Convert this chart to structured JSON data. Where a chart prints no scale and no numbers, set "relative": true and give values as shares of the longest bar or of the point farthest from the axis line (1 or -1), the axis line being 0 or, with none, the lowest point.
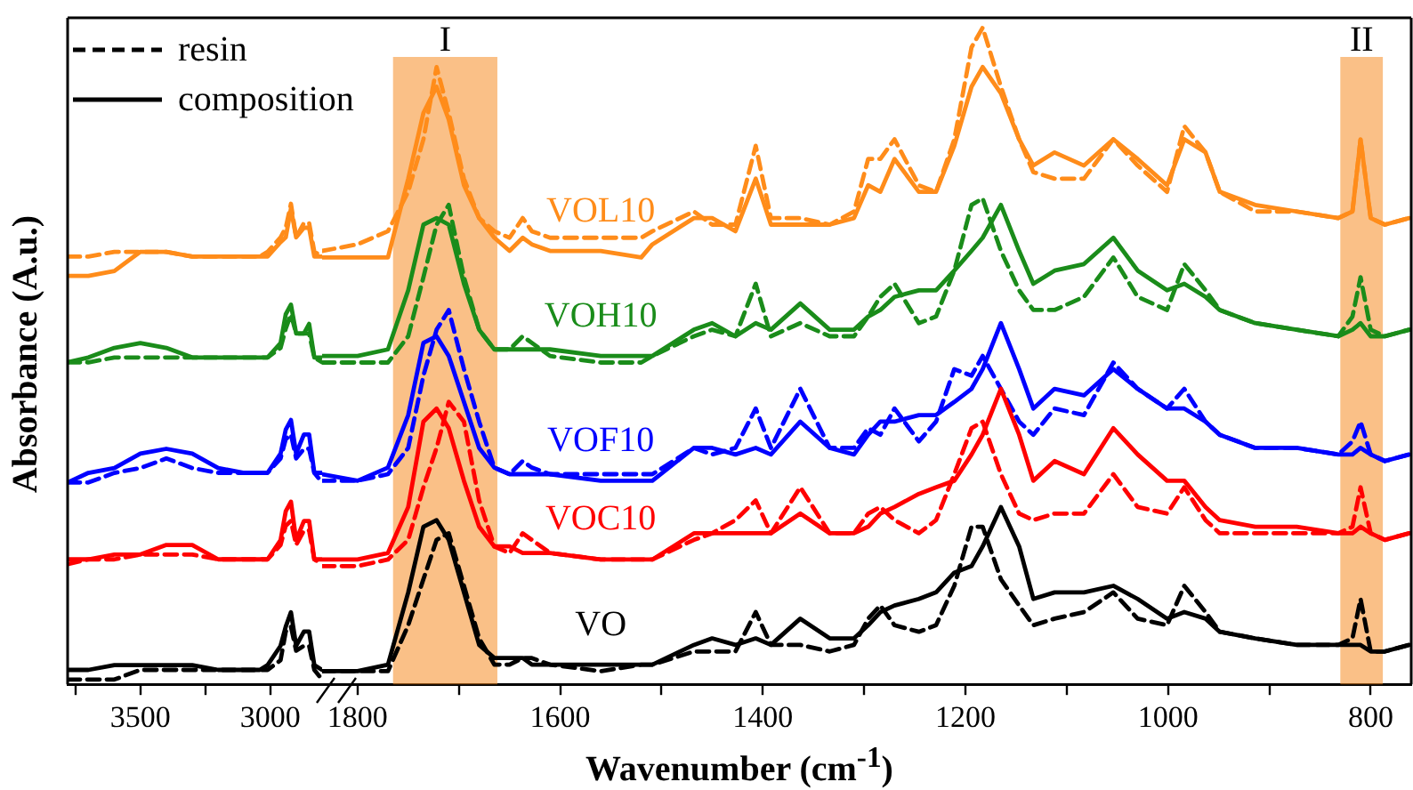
{
  "chart_data": [
    {
      "type": "line",
      "relative": true,
      "ylabel": "Absorbance (A.u.)",
      "annotations": [
        "resin",
        "composition"
      ],
      "tick_labels": "x",
      "xlim": [
        3780,
        2800
      ],
      "xticks": [
        {
          "value": 3750,
          "label": null
        },
        3500,
        {
          "value": 3250,
          "label": null
        },
        3000
      ],
      "x": [
        3780,
        3700,
        3600,
        3500,
        3400,
        3300,
        3200,
        3100,
        3040,
        3010,
        2960,
        2940,
        2920,
        2900,
        2870,
        2850,
        2830,
        2800
      ],
      "series": [
        {
          "color": "#000000",
          "line_style": "dashed",
          "values": [
            0.01,
            0.01,
            0.01,
            0.03,
            0.03,
            0.03,
            0.03,
            0.03,
            0.03,
            0.03,
            0.05,
            0.11,
            0.12,
            0.07,
            0.08,
            0.08,
            0.03,
            0.01
          ]
        },
        {
          "color": "#000000",
          "line_style": "solid",
          "values": [
            0.03,
            0.03,
            0.04,
            0.04,
            0.04,
            0.04,
            0.03,
            0.03,
            0.03,
            0.04,
            0.08,
            0.12,
            0.15,
            0.08,
            0.11,
            0.11,
            0.04,
            0.03
          ]
        },
        {
          "color": "#ff0000",
          "line_style": "dashed",
          "values": [
            0.25,
            0.26,
            0.26,
            0.27,
            0.27,
            0.27,
            0.26,
            0.26,
            0.26,
            0.26,
            0.29,
            0.33,
            0.34,
            0.29,
            0.32,
            0.32,
            0.26,
            0.25
          ]
        },
        {
          "color": "#ff0000",
          "line_style": "solid",
          "values": [
            0.26,
            0.26,
            0.27,
            0.27,
            0.29,
            0.29,
            0.26,
            0.26,
            0.26,
            0.26,
            0.3,
            0.36,
            0.38,
            0.3,
            0.34,
            0.34,
            0.26,
            0.26
          ]
        },
        {
          "color": "#0000ff",
          "line_style": "dashed",
          "values": [
            0.42,
            0.42,
            0.44,
            0.45,
            0.47,
            0.45,
            0.44,
            0.44,
            0.44,
            0.44,
            0.47,
            0.51,
            0.52,
            0.47,
            0.49,
            0.49,
            0.44,
            0.42
          ]
        },
        {
          "color": "#0000ff",
          "line_style": "solid",
          "values": [
            0.42,
            0.44,
            0.45,
            0.48,
            0.49,
            0.48,
            0.45,
            0.44,
            0.44,
            0.44,
            0.48,
            0.53,
            0.55,
            0.48,
            0.52,
            0.52,
            0.44,
            0.44
          ]
        },
        {
          "color": "#1a8c1a",
          "line_style": "dashed",
          "values": [
            0.67,
            0.67,
            0.68,
            0.68,
            0.68,
            0.68,
            0.68,
            0.68,
            0.68,
            0.68,
            0.7,
            0.74,
            0.77,
            0.73,
            0.73,
            0.73,
            0.68,
            0.67
          ]
        },
        {
          "color": "#1a8c1a",
          "line_style": "solid",
          "values": [
            0.67,
            0.68,
            0.7,
            0.71,
            0.7,
            0.68,
            0.68,
            0.68,
            0.68,
            0.68,
            0.71,
            0.77,
            0.79,
            0.73,
            0.73,
            0.75,
            0.68,
            0.68
          ]
        },
        {
          "color": "#ff8c1a",
          "line_style": "dashed",
          "values": [
            0.89,
            0.89,
            0.9,
            0.9,
            0.9,
            0.89,
            0.89,
            0.89,
            0.89,
            0.9,
            0.93,
            0.95,
            1.0,
            0.93,
            0.96,
            0.96,
            0.9,
            0.89
          ]
        },
        {
          "color": "#ff8c1a",
          "line_style": "solid",
          "values": [
            0.85,
            0.85,
            0.86,
            0.9,
            0.9,
            0.89,
            0.89,
            0.89,
            0.89,
            0.89,
            0.92,
            0.93,
            0.99,
            0.93,
            0.95,
            0.95,
            0.89,
            0.89
          ]
        }
      ]
    },
    {
      "type": "line",
      "relative": true,
      "xlabel": "Wavenumber (cm$^{-1}$)",
      "tick_labels": "x",
      "xlim": [
        1835,
        760
      ],
      "xticks": [
        1800,
        {
          "value": 1700,
          "label": null
        },
        1600,
        {
          "value": 1500,
          "label": null
        },
        1400,
        {
          "value": 1300,
          "label": null
        },
        1200,
        {
          "value": 1100,
          "label": null
        },
        1000,
        {
          "value": 900,
          "label": null
        },
        800
      ],
      "bands": [
        {
          "axis": "x",
          "from": 1765,
          "to": 1662,
          "label": "I",
          "color": "#f68c25"
        },
        {
          "axis": "x",
          "from": 830,
          "to": 788,
          "label": "II",
          "color": "#f68c25"
        }
      ],
      "x": [
        1835,
        1800,
        1770,
        1750,
        1735,
        1722,
        1710,
        1695,
        1680,
        1665,
        1650,
        1637,
        1628,
        1610,
        1560,
        1520,
        1509,
        1468,
        1450,
        1427,
        1407,
        1392,
        1363,
        1334,
        1310,
        1296,
        1284,
        1270,
        1246,
        1229,
        1211,
        1194,
        1183,
        1165,
        1147,
        1133,
        1112,
        1083,
        1054,
        1030,
        1001,
        984,
        963,
        949,
        914,
        873,
        832,
        818,
        810,
        800,
        786,
        762
      ],
      "series": [
        {
          "color": "#000000",
          "line_style": "dashed",
          "values": [
            0.02,
            0.02,
            0.02,
            0.09,
            0.16,
            0.22,
            0.23,
            0.15,
            0.07,
            0.03,
            0.03,
            0.04,
            0.04,
            0.03,
            0.02,
            0.03,
            0.03,
            0.05,
            0.05,
            0.05,
            0.11,
            0.06,
            0.06,
            0.05,
            0.06,
            0.1,
            0.12,
            0.09,
            0.08,
            0.09,
            0.15,
            0.24,
            0.24,
            0.16,
            0.12,
            0.09,
            0.1,
            0.11,
            0.14,
            0.1,
            0.09,
            0.15,
            0.11,
            0.08,
            0.07,
            0.06,
            0.06,
            0.07,
            0.13,
            0.05,
            0.05,
            0.06
          ]
        },
        {
          "name": "VO",
          "color": "#000000",
          "line_style": "solid",
          "values": [
            0.02,
            0.02,
            0.03,
            0.14,
            0.24,
            0.25,
            0.22,
            0.14,
            0.06,
            0.04,
            0.04,
            0.04,
            0.03,
            0.03,
            0.03,
            0.03,
            0.03,
            0.06,
            0.07,
            0.06,
            0.07,
            0.06,
            0.1,
            0.07,
            0.07,
            0.09,
            0.11,
            0.12,
            0.13,
            0.14,
            0.17,
            0.18,
            0.21,
            0.27,
            0.21,
            0.13,
            0.14,
            0.14,
            0.15,
            0.13,
            0.1,
            0.11,
            0.1,
            0.08,
            0.07,
            0.06,
            0.06,
            0.06,
            0.06,
            0.05,
            0.05,
            0.06
          ]
        },
        {
          "color": "#ff0000",
          "line_style": "dashed",
          "values": [
            0.18,
            0.18,
            0.19,
            0.22,
            0.3,
            0.36,
            0.43,
            0.4,
            0.28,
            0.21,
            0.2,
            0.23,
            0.22,
            0.2,
            0.19,
            0.19,
            0.19,
            0.22,
            0.23,
            0.25,
            0.28,
            0.23,
            0.3,
            0.23,
            0.23,
            0.26,
            0.27,
            0.25,
            0.23,
            0.25,
            0.32,
            0.39,
            0.4,
            0.32,
            0.26,
            0.25,
            0.26,
            0.26,
            0.32,
            0.27,
            0.26,
            0.3,
            0.25,
            0.23,
            0.23,
            0.23,
            0.23,
            0.24,
            0.3,
            0.23,
            0.22,
            0.23
          ]
        },
        {
          "name": "VOC10",
          "color": "#ff0000",
          "line_style": "solid",
          "values": [
            0.19,
            0.19,
            0.2,
            0.27,
            0.4,
            0.42,
            0.39,
            0.31,
            0.24,
            0.21,
            0.21,
            0.2,
            0.2,
            0.2,
            0.19,
            0.19,
            0.19,
            0.23,
            0.23,
            0.23,
            0.23,
            0.23,
            0.26,
            0.23,
            0.23,
            0.24,
            0.26,
            0.27,
            0.29,
            0.3,
            0.31,
            0.35,
            0.38,
            0.45,
            0.38,
            0.31,
            0.34,
            0.32,
            0.39,
            0.35,
            0.31,
            0.31,
            0.27,
            0.25,
            0.24,
            0.24,
            0.23,
            0.23,
            0.24,
            0.23,
            0.22,
            0.23
          ]
        },
        {
          "color": "#0000ff",
          "line_style": "dashed",
          "values": [
            0.31,
            0.31,
            0.32,
            0.36,
            0.47,
            0.54,
            0.57,
            0.48,
            0.4,
            0.33,
            0.32,
            0.34,
            0.33,
            0.32,
            0.32,
            0.32,
            0.32,
            0.36,
            0.35,
            0.36,
            0.42,
            0.36,
            0.45,
            0.36,
            0.36,
            0.39,
            0.38,
            0.42,
            0.37,
            0.4,
            0.48,
            0.47,
            0.5,
            0.45,
            0.4,
            0.38,
            0.42,
            0.41,
            0.49,
            0.45,
            0.42,
            0.45,
            0.4,
            0.38,
            0.36,
            0.36,
            0.35,
            0.37,
            0.4,
            0.35,
            0.34,
            0.35
          ]
        },
        {
          "name": "VOF10",
          "color": "#0000ff",
          "line_style": "solid",
          "values": [
            0.32,
            0.31,
            0.33,
            0.41,
            0.52,
            0.53,
            0.5,
            0.43,
            0.36,
            0.33,
            0.32,
            0.32,
            0.32,
            0.32,
            0.31,
            0.31,
            0.31,
            0.36,
            0.36,
            0.35,
            0.36,
            0.35,
            0.4,
            0.36,
            0.35,
            0.38,
            0.4,
            0.4,
            0.41,
            0.41,
            0.43,
            0.45,
            0.48,
            0.55,
            0.48,
            0.42,
            0.45,
            0.44,
            0.48,
            0.45,
            0.42,
            0.42,
            0.4,
            0.38,
            0.36,
            0.36,
            0.35,
            0.35,
            0.36,
            0.35,
            0.34,
            0.35
          ]
        },
        {
          "color": "#1a8c1a",
          "line_style": "dashed",
          "values": [
            0.49,
            0.49,
            0.49,
            0.53,
            0.62,
            0.7,
            0.73,
            0.62,
            0.54,
            0.51,
            0.51,
            0.53,
            0.52,
            0.5,
            0.49,
            0.49,
            0.5,
            0.53,
            0.54,
            0.53,
            0.61,
            0.53,
            0.55,
            0.53,
            0.53,
            0.56,
            0.59,
            0.61,
            0.55,
            0.56,
            0.63,
            0.73,
            0.74,
            0.66,
            0.6,
            0.57,
            0.57,
            0.59,
            0.65,
            0.59,
            0.57,
            0.64,
            0.6,
            0.57,
            0.55,
            0.54,
            0.53,
            0.56,
            0.62,
            0.54,
            0.53,
            0.54
          ]
        },
        {
          "name": "VOH10",
          "color": "#1a8c1a",
          "line_style": "solid",
          "values": [
            0.5,
            0.5,
            0.51,
            0.6,
            0.7,
            0.71,
            0.7,
            0.61,
            0.54,
            0.51,
            0.51,
            0.51,
            0.51,
            0.51,
            0.5,
            0.5,
            0.5,
            0.54,
            0.55,
            0.53,
            0.55,
            0.54,
            0.58,
            0.54,
            0.54,
            0.56,
            0.57,
            0.59,
            0.6,
            0.6,
            0.63,
            0.66,
            0.68,
            0.73,
            0.66,
            0.61,
            0.63,
            0.64,
            0.68,
            0.63,
            0.6,
            0.61,
            0.59,
            0.57,
            0.55,
            0.54,
            0.53,
            0.54,
            0.55,
            0.53,
            0.53,
            0.54
          ]
        },
        {
          "color": "#ff8c1a",
          "line_style": "dashed",
          "values": [
            0.66,
            0.67,
            0.69,
            0.75,
            0.83,
            0.94,
            0.87,
            0.77,
            0.71,
            0.69,
            0.68,
            0.71,
            0.69,
            0.68,
            0.68,
            0.68,
            0.69,
            0.72,
            0.7,
            0.7,
            0.82,
            0.71,
            0.71,
            0.7,
            0.72,
            0.8,
            0.8,
            0.83,
            0.76,
            0.75,
            0.83,
            0.97,
            1.0,
            0.91,
            0.83,
            0.78,
            0.77,
            0.77,
            0.83,
            0.79,
            0.75,
            0.85,
            0.81,
            0.75,
            0.72,
            0.72,
            0.71,
            0.72,
            0.83,
            0.71,
            0.7,
            0.71
          ]
        },
        {
          "name": "VOL10",
          "color": "#ff8c1a",
          "line_style": "solid",
          "values": [
            0.65,
            0.65,
            0.65,
            0.77,
            0.87,
            0.91,
            0.86,
            0.76,
            0.71,
            0.68,
            0.66,
            0.68,
            0.67,
            0.66,
            0.66,
            0.65,
            0.67,
            0.71,
            0.71,
            0.69,
            0.77,
            0.7,
            0.7,
            0.7,
            0.71,
            0.76,
            0.75,
            0.8,
            0.75,
            0.75,
            0.82,
            0.91,
            0.94,
            0.9,
            0.83,
            0.79,
            0.81,
            0.79,
            0.83,
            0.8,
            0.76,
            0.83,
            0.81,
            0.75,
            0.73,
            0.72,
            0.71,
            0.72,
            0.83,
            0.71,
            0.7,
            0.71
          ]
        }
      ]
    }
  ]
}
